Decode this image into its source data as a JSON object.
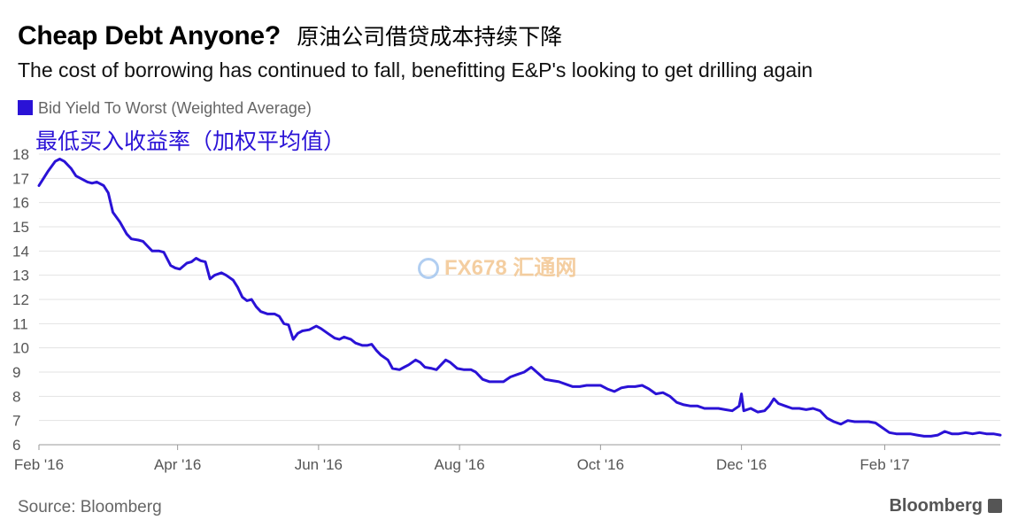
{
  "header": {
    "title": "Cheap Debt Anyone?",
    "title_cn": "原油公司借贷成本持续下降",
    "subtitle": "The cost of borrowing has continued to fall, benefitting E&P's looking to get drilling again"
  },
  "legend": {
    "label": "Bid Yield To Worst (Weighted Average)",
    "label_cn": "最低买入收益率（加权平均值）",
    "color": "#2a12d6"
  },
  "footer": {
    "source": "Source: Bloomberg",
    "brand": "Bloomberg"
  },
  "watermark": {
    "text": "FX678",
    "text_cn": "汇通网"
  },
  "chart_data": {
    "type": "line",
    "title": "Cheap Debt Anyone?",
    "series": [
      {
        "name": "Bid Yield To Worst (Weighted Average)",
        "color": "#2a12d6",
        "points": [
          [
            "2016-02-01",
            16.7
          ],
          [
            "2016-02-03",
            17.0
          ],
          [
            "2016-02-05",
            17.3
          ],
          [
            "2016-02-08",
            17.7
          ],
          [
            "2016-02-10",
            17.8
          ],
          [
            "2016-02-12",
            17.7
          ],
          [
            "2016-02-15",
            17.4
          ],
          [
            "2016-02-17",
            17.1
          ],
          [
            "2016-02-19",
            17.0
          ],
          [
            "2016-02-22",
            16.85
          ],
          [
            "2016-02-24",
            16.8
          ],
          [
            "2016-02-26",
            16.85
          ],
          [
            "2016-02-29",
            16.7
          ],
          [
            "2016-03-02",
            16.4
          ],
          [
            "2016-03-04",
            15.6
          ],
          [
            "2016-03-07",
            15.2
          ],
          [
            "2016-03-10",
            14.7
          ],
          [
            "2016-03-12",
            14.5
          ],
          [
            "2016-03-15",
            14.45
          ],
          [
            "2016-03-17",
            14.4
          ],
          [
            "2016-03-19",
            14.2
          ],
          [
            "2016-03-21",
            14.0
          ],
          [
            "2016-03-24",
            14.0
          ],
          [
            "2016-03-26",
            13.95
          ],
          [
            "2016-03-29",
            13.4
          ],
          [
            "2016-03-31",
            13.3
          ],
          [
            "2016-04-02",
            13.25
          ],
          [
            "2016-04-05",
            13.5
          ],
          [
            "2016-04-07",
            13.55
          ],
          [
            "2016-04-09",
            13.7
          ],
          [
            "2016-04-11",
            13.6
          ],
          [
            "2016-04-13",
            13.55
          ],
          [
            "2016-04-15",
            12.85
          ],
          [
            "2016-04-17",
            13.0
          ],
          [
            "2016-04-20",
            13.1
          ],
          [
            "2016-04-22",
            13.0
          ],
          [
            "2016-04-25",
            12.8
          ],
          [
            "2016-04-27",
            12.5
          ],
          [
            "2016-04-29",
            12.1
          ],
          [
            "2016-05-01",
            11.95
          ],
          [
            "2016-05-03",
            12.0
          ],
          [
            "2016-05-05",
            11.7
          ],
          [
            "2016-05-07",
            11.5
          ],
          [
            "2016-05-10",
            11.4
          ],
          [
            "2016-05-13",
            11.4
          ],
          [
            "2016-05-15",
            11.3
          ],
          [
            "2016-05-17",
            11.0
          ],
          [
            "2016-05-19",
            10.95
          ],
          [
            "2016-05-21",
            10.35
          ],
          [
            "2016-05-23",
            10.6
          ],
          [
            "2016-05-25",
            10.7
          ],
          [
            "2016-05-28",
            10.75
          ],
          [
            "2016-05-31",
            10.9
          ],
          [
            "2016-06-02",
            10.8
          ],
          [
            "2016-06-05",
            10.6
          ],
          [
            "2016-06-08",
            10.4
          ],
          [
            "2016-06-10",
            10.35
          ],
          [
            "2016-06-12",
            10.45
          ],
          [
            "2016-06-15",
            10.35
          ],
          [
            "2016-06-17",
            10.2
          ],
          [
            "2016-06-20",
            10.1
          ],
          [
            "2016-06-22",
            10.1
          ],
          [
            "2016-06-24",
            10.15
          ],
          [
            "2016-06-26",
            9.9
          ],
          [
            "2016-06-28",
            9.7
          ],
          [
            "2016-07-01",
            9.5
          ],
          [
            "2016-07-03",
            9.15
          ],
          [
            "2016-07-06",
            9.1
          ],
          [
            "2016-07-08",
            9.2
          ],
          [
            "2016-07-10",
            9.3
          ],
          [
            "2016-07-13",
            9.5
          ],
          [
            "2016-07-15",
            9.4
          ],
          [
            "2016-07-17",
            9.2
          ],
          [
            "2016-07-20",
            9.15
          ],
          [
            "2016-07-22",
            9.1
          ],
          [
            "2016-07-24",
            9.3
          ],
          [
            "2016-07-26",
            9.5
          ],
          [
            "2016-07-28",
            9.4
          ],
          [
            "2016-07-31",
            9.15
          ],
          [
            "2016-08-03",
            9.1
          ],
          [
            "2016-08-06",
            9.1
          ],
          [
            "2016-08-08",
            9.0
          ],
          [
            "2016-08-11",
            8.7
          ],
          [
            "2016-08-14",
            8.6
          ],
          [
            "2016-08-17",
            8.6
          ],
          [
            "2016-08-20",
            8.6
          ],
          [
            "2016-08-23",
            8.8
          ],
          [
            "2016-08-26",
            8.9
          ],
          [
            "2016-08-29",
            9.0
          ],
          [
            "2016-09-01",
            9.2
          ],
          [
            "2016-09-04",
            8.95
          ],
          [
            "2016-09-07",
            8.7
          ],
          [
            "2016-09-10",
            8.65
          ],
          [
            "2016-09-13",
            8.6
          ],
          [
            "2016-09-16",
            8.5
          ],
          [
            "2016-09-19",
            8.4
          ],
          [
            "2016-09-22",
            8.4
          ],
          [
            "2016-09-25",
            8.45
          ],
          [
            "2016-09-28",
            8.45
          ],
          [
            "2016-10-01",
            8.45
          ],
          [
            "2016-10-04",
            8.3
          ],
          [
            "2016-10-07",
            8.2
          ],
          [
            "2016-10-10",
            8.35
          ],
          [
            "2016-10-13",
            8.4
          ],
          [
            "2016-10-16",
            8.4
          ],
          [
            "2016-10-19",
            8.45
          ],
          [
            "2016-10-22",
            8.3
          ],
          [
            "2016-10-25",
            8.1
          ],
          [
            "2016-10-28",
            8.15
          ],
          [
            "2016-10-31",
            8.0
          ],
          [
            "2016-11-03",
            7.75
          ],
          [
            "2016-11-06",
            7.65
          ],
          [
            "2016-11-09",
            7.6
          ],
          [
            "2016-11-12",
            7.6
          ],
          [
            "2016-11-15",
            7.5
          ],
          [
            "2016-11-18",
            7.5
          ],
          [
            "2016-11-21",
            7.5
          ],
          [
            "2016-11-24",
            7.45
          ],
          [
            "2016-11-27",
            7.4
          ],
          [
            "2016-11-30",
            7.6
          ],
          [
            "2016-12-01",
            8.1
          ],
          [
            "2016-12-02",
            7.4
          ],
          [
            "2016-12-05",
            7.5
          ],
          [
            "2016-12-08",
            7.35
          ],
          [
            "2016-12-11",
            7.4
          ],
          [
            "2016-12-13",
            7.6
          ],
          [
            "2016-12-15",
            7.9
          ],
          [
            "2016-12-17",
            7.7
          ],
          [
            "2016-12-20",
            7.6
          ],
          [
            "2016-12-23",
            7.5
          ],
          [
            "2016-12-26",
            7.5
          ],
          [
            "2016-12-29",
            7.45
          ],
          [
            "2017-01-01",
            7.5
          ],
          [
            "2017-01-04",
            7.4
          ],
          [
            "2017-01-07",
            7.1
          ],
          [
            "2017-01-10",
            6.95
          ],
          [
            "2017-01-13",
            6.85
          ],
          [
            "2017-01-16",
            7.0
          ],
          [
            "2017-01-19",
            6.95
          ],
          [
            "2017-01-22",
            6.95
          ],
          [
            "2017-01-25",
            6.95
          ],
          [
            "2017-01-28",
            6.9
          ],
          [
            "2017-01-31",
            6.7
          ],
          [
            "2017-02-03",
            6.5
          ],
          [
            "2017-02-06",
            6.45
          ],
          [
            "2017-02-09",
            6.45
          ],
          [
            "2017-02-12",
            6.45
          ],
          [
            "2017-02-15",
            6.4
          ],
          [
            "2017-02-18",
            6.35
          ],
          [
            "2017-02-21",
            6.35
          ],
          [
            "2017-02-24",
            6.4
          ],
          [
            "2017-02-27",
            6.55
          ],
          [
            "2017-03-02",
            6.45
          ],
          [
            "2017-03-05",
            6.45
          ],
          [
            "2017-03-08",
            6.5
          ],
          [
            "2017-03-11",
            6.45
          ],
          [
            "2017-03-14",
            6.5
          ],
          [
            "2017-03-17",
            6.45
          ],
          [
            "2017-03-20",
            6.45
          ],
          [
            "2017-03-23",
            6.4
          ]
        ]
      }
    ],
    "ylim": [
      6,
      18
    ],
    "yticks": [
      6,
      7,
      8,
      9,
      10,
      11,
      12,
      13,
      14,
      15,
      16,
      17,
      18
    ],
    "xlim": [
      "2016-02-01",
      "2017-03-23"
    ],
    "xticks": [
      {
        "label": "Feb '16",
        "date": "2016-02-01"
      },
      {
        "label": "Apr '16",
        "date": "2016-04-01"
      },
      {
        "label": "Jun '16",
        "date": "2016-06-01"
      },
      {
        "label": "Aug '16",
        "date": "2016-08-01"
      },
      {
        "label": "Oct '16",
        "date": "2016-10-01"
      },
      {
        "label": "Dec '16",
        "date": "2016-12-01"
      },
      {
        "label": "Feb '17",
        "date": "2017-02-01"
      }
    ],
    "grid": true,
    "legend_position": "top-left"
  }
}
